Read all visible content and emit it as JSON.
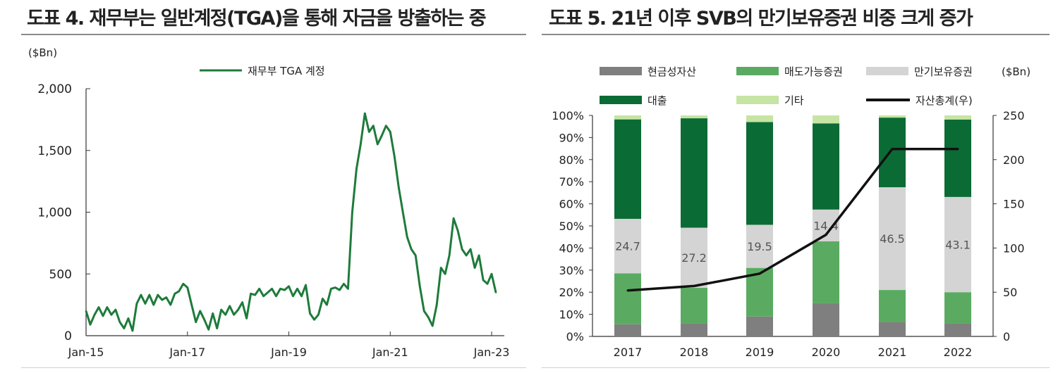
{
  "titles": {
    "left": "도표 4. 재무부는 일반계정(TGA)을 통해 자금을 방출하는 중",
    "right": "도표 5. 21년 이후 SVB의 만기보유증권 비중 크게 증가"
  },
  "colors": {
    "tga_line": "#1e7b3b",
    "axis": "#333333",
    "total_line": "#111111"
  },
  "chart_data": [
    {
      "type": "line",
      "unit_label": "($Bn)",
      "ylim": [
        0,
        2000
      ],
      "y_ticks": [
        "0",
        "500",
        "1,000",
        "1,500",
        "2,000"
      ],
      "x_ticks": [
        "Jan-15",
        "Jan-17",
        "Jan-19",
        "Jan-21",
        "Jan-23"
      ],
      "legend": "top-center",
      "series": [
        {
          "name": "재무부 TGA 계정",
          "color": "#1e7b3b",
          "points": [
            [
              "2015-01",
              200
            ],
            [
              "2015-02",
              90
            ],
            [
              "2015-03",
              170
            ],
            [
              "2015-04",
              230
            ],
            [
              "2015-05",
              160
            ],
            [
              "2015-06",
              230
            ],
            [
              "2015-07",
              170
            ],
            [
              "2015-08",
              210
            ],
            [
              "2015-09",
              110
            ],
            [
              "2015-10",
              60
            ],
            [
              "2015-11",
              140
            ],
            [
              "2015-12",
              40
            ],
            [
              "2016-01",
              260
            ],
            [
              "2016-02",
              330
            ],
            [
              "2016-03",
              260
            ],
            [
              "2016-04",
              330
            ],
            [
              "2016-05",
              250
            ],
            [
              "2016-06",
              330
            ],
            [
              "2016-07",
              290
            ],
            [
              "2016-08",
              310
            ],
            [
              "2016-09",
              250
            ],
            [
              "2016-10",
              340
            ],
            [
              "2016-11",
              360
            ],
            [
              "2016-12",
              420
            ],
            [
              "2017-01",
              390
            ],
            [
              "2017-02",
              250
            ],
            [
              "2017-03",
              110
            ],
            [
              "2017-04",
              200
            ],
            [
              "2017-05",
              130
            ],
            [
              "2017-06",
              50
            ],
            [
              "2017-07",
              180
            ],
            [
              "2017-08",
              60
            ],
            [
              "2017-09",
              210
            ],
            [
              "2017-10",
              170
            ],
            [
              "2017-11",
              240
            ],
            [
              "2017-12",
              170
            ],
            [
              "2018-01",
              210
            ],
            [
              "2018-02",
              270
            ],
            [
              "2018-03",
              140
            ],
            [
              "2018-04",
              340
            ],
            [
              "2018-05",
              330
            ],
            [
              "2018-06",
              380
            ],
            [
              "2018-07",
              320
            ],
            [
              "2018-08",
              350
            ],
            [
              "2018-09",
              380
            ],
            [
              "2018-10",
              320
            ],
            [
              "2018-11",
              380
            ],
            [
              "2018-12",
              370
            ],
            [
              "2019-01",
              400
            ],
            [
              "2019-02",
              320
            ],
            [
              "2019-03",
              380
            ],
            [
              "2019-04",
              320
            ],
            [
              "2019-05",
              410
            ],
            [
              "2019-06",
              180
            ],
            [
              "2019-07",
              130
            ],
            [
              "2019-08",
              170
            ],
            [
              "2019-09",
              300
            ],
            [
              "2019-10",
              250
            ],
            [
              "2019-11",
              380
            ],
            [
              "2019-12",
              390
            ],
            [
              "2020-01",
              370
            ],
            [
              "2020-02",
              420
            ],
            [
              "2020-03",
              380
            ],
            [
              "2020-04",
              1000
            ],
            [
              "2020-05",
              1350
            ],
            [
              "2020-06",
              1550
            ],
            [
              "2020-07",
              1800
            ],
            [
              "2020-08",
              1650
            ],
            [
              "2020-09",
              1700
            ],
            [
              "2020-10",
              1550
            ],
            [
              "2020-11",
              1620
            ],
            [
              "2020-12",
              1700
            ],
            [
              "2021-01",
              1650
            ],
            [
              "2021-02",
              1450
            ],
            [
              "2021-03",
              1200
            ],
            [
              "2021-04",
              1000
            ],
            [
              "2021-05",
              800
            ],
            [
              "2021-06",
              700
            ],
            [
              "2021-07",
              650
            ],
            [
              "2021-08",
              400
            ],
            [
              "2021-09",
              200
            ],
            [
              "2021-10",
              150
            ],
            [
              "2021-11",
              80
            ],
            [
              "2021-12",
              250
            ],
            [
              "2022-01",
              550
            ],
            [
              "2022-02",
              500
            ],
            [
              "2022-03",
              650
            ],
            [
              "2022-04",
              950
            ],
            [
              "2022-05",
              850
            ],
            [
              "2022-06",
              700
            ],
            [
              "2022-07",
              650
            ],
            [
              "2022-08",
              700
            ],
            [
              "2022-09",
              550
            ],
            [
              "2022-10",
              650
            ],
            [
              "2022-11",
              450
            ],
            [
              "2022-12",
              420
            ],
            [
              "2023-01",
              500
            ],
            [
              "2023-02",
              350
            ]
          ]
        }
      ]
    },
    {
      "type": "bar",
      "stacked": true,
      "unit_label": "($Bn)",
      "categories": [
        "2017",
        "2018",
        "2019",
        "2020",
        "2021",
        "2022"
      ],
      "y_left_ticks": [
        "0%",
        "10%",
        "20%",
        "30%",
        "40%",
        "50%",
        "60%",
        "70%",
        "80%",
        "90%",
        "100%"
      ],
      "y_right_ticks": [
        "0",
        "50",
        "100",
        "150",
        "200",
        "250"
      ],
      "ylim_left": [
        0,
        100
      ],
      "ylim_right": [
        0,
        250
      ],
      "series": [
        {
          "name": "현금성자산",
          "color": "#7f7f7f",
          "values": [
            5.5,
            6,
            9,
            15,
            6.5,
            6
          ]
        },
        {
          "name": "매도가능증권",
          "color": "#5aab61",
          "values": [
            23,
            16,
            22,
            28,
            14.5,
            14
          ]
        },
        {
          "name": "만기보유증권",
          "color": "#d4d4d4",
          "values": [
            24.7,
            27.2,
            19.5,
            14.4,
            46.5,
            43.1
          ]
        },
        {
          "name": "대출",
          "color": "#0b6b35",
          "values": [
            45,
            49.5,
            46.5,
            39,
            31.5,
            35
          ]
        },
        {
          "name": "기타",
          "color": "#c6e4a3",
          "values": [
            1.8,
            1.3,
            3,
            3.6,
            1,
            1.9
          ]
        }
      ],
      "line_series": {
        "name": "자산총계(우)",
        "color": "#111111",
        "values": [
          52,
          57,
          71,
          115,
          212,
          212
        ]
      },
      "data_labels": [
        "24.7",
        "27.2",
        "19.5",
        "14.4",
        "46.5",
        "43.1"
      ]
    }
  ]
}
